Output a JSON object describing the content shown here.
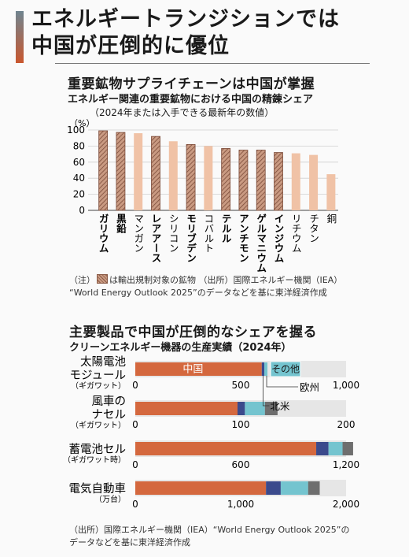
{
  "main_title": [
    "エネルギートランジションでは",
    "中国が圧倒的に優位"
  ],
  "colors": {
    "orange": "#d4683e",
    "light": "#f0c2a6",
    "navy": "#3b4a8c",
    "teal": "#74c4cf",
    "gray": "#6e6e6e",
    "hatch": "#c99a82"
  },
  "section1": {
    "title": "重要鉱物サプライチェーンは中国が掌握",
    "subtitle": "エネルギー関連の重要鉱物における中国の精錬シェア",
    "note": "（2024年または入手できる最新年の数値）",
    "legend_prefix": "（注）",
    "legend_text": "は輸出規制対象の鉱物 （出所）国際エネルギー機関（IEA）",
    "source2": "“World Energy Outlook 2025”のデータなどを基に東洋経済作成"
  },
  "section2": {
    "title": "主要製品で中国が圧倒的なシェアを握る",
    "subtitle": "クリーンエネルギー機器の生産実績（2024年）",
    "source1": "（出所）国際エネルギー機関（IEA）“World Energy Outlook 2025”の",
    "source2": "データなどを基に東洋経済作成"
  },
  "chart_data": [
    {
      "type": "bar",
      "title": "重要鉱物サプライチェーンは中国が掌握",
      "ylabel": "（%）",
      "ylim": [
        0,
        100
      ],
      "yticks": [
        "0",
        "20",
        "40",
        "60",
        "80",
        "100"
      ],
      "categories": [
        "ガリウム",
        "黒鉛",
        "マンガン",
        "レアアース",
        "シリコン",
        "モリブデン",
        "コバルト",
        "テルル",
        "アンチモン",
        "ゲルマニウム",
        "インジウム",
        "リチウム",
        "チタン",
        "銅"
      ],
      "values": [
        99,
        97,
        96,
        92,
        86,
        82,
        80,
        77,
        75,
        75,
        72,
        71,
        69,
        45
      ],
      "export_controlled": [
        true,
        true,
        false,
        true,
        false,
        true,
        false,
        true,
        true,
        true,
        true,
        false,
        false,
        false
      ]
    },
    {
      "type": "bar",
      "orientation": "horizontal-stacked",
      "title": "主要製品で中国が圧倒的なシェアを握る",
      "series": [
        {
          "name": "中国",
          "color": "#d4683e"
        },
        {
          "name": "北米",
          "color": "#3b4a8c"
        },
        {
          "name": "欧州",
          "color": "#74c4cf"
        },
        {
          "name": "その他",
          "color": "#6e6e6e"
        }
      ],
      "rows": [
        {
          "label": [
            "太陽電池",
            "モジュール"
          ],
          "unit": "（ギガワット）",
          "max": 1000,
          "ticks": [
            "0",
            "500",
            "1,000"
          ],
          "values": [
            600,
            12,
            15,
            0
          ]
        },
        {
          "label": [
            "風車の",
            "ナセル"
          ],
          "unit": "（ギガワット）",
          "max": 200,
          "ticks": [
            "0",
            "100",
            "200"
          ],
          "values": [
            97,
            7,
            19,
            12
          ]
        },
        {
          "label": [
            "蓄電池セル"
          ],
          "unit": "（ギガワット時）",
          "max": 1200,
          "ticks": [
            "0",
            "600",
            "1,200"
          ],
          "values": [
            1030,
            70,
            80,
            60
          ]
        },
        {
          "label": [
            "電気自動車"
          ],
          "unit": "（万台）",
          "max": 2000,
          "ticks": [
            "0",
            "1,000",
            "2,000"
          ],
          "values": [
            1240,
            140,
            260,
            110
          ]
        }
      ]
    }
  ]
}
